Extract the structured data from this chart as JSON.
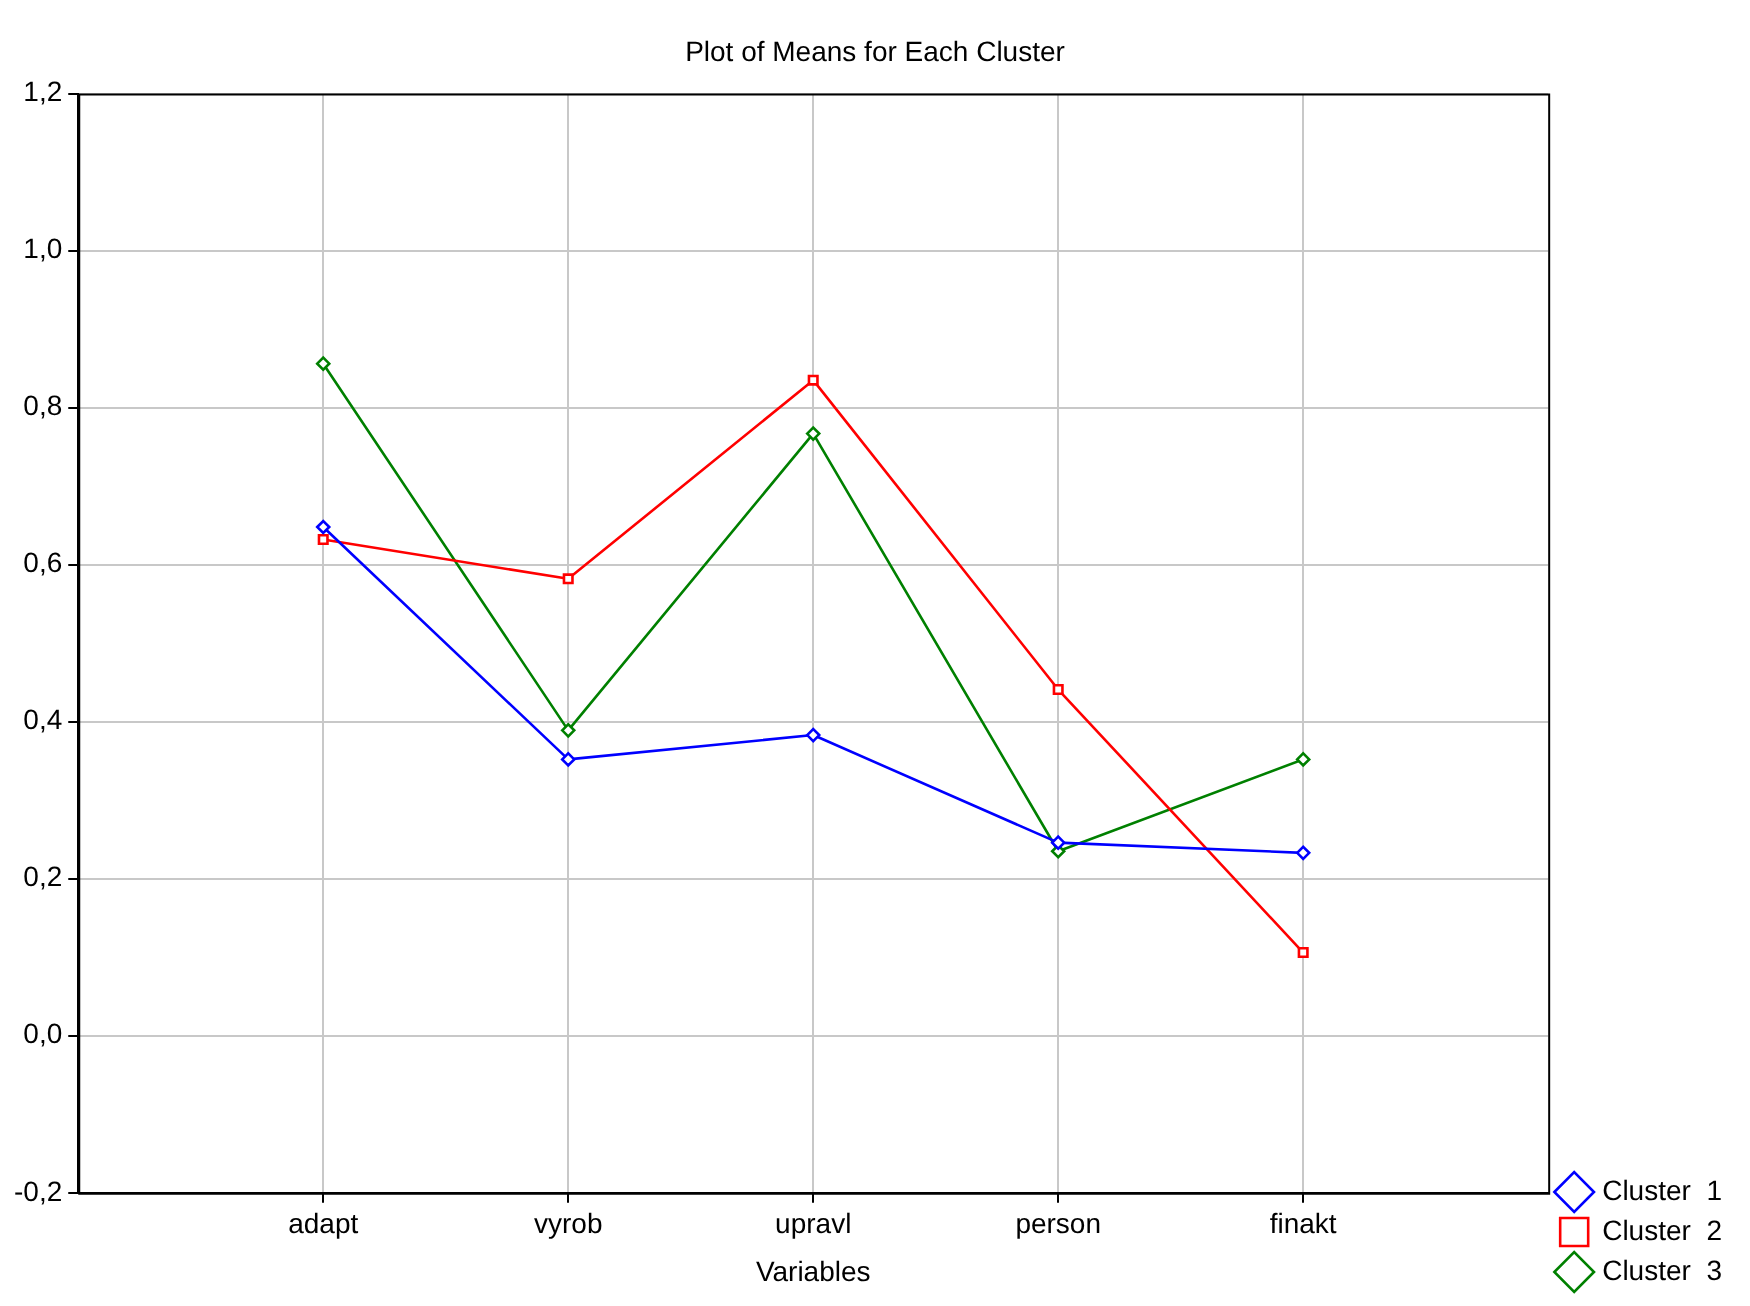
{
  "chart_data": {
    "type": "line",
    "title": "Plot of Means for Each Cluster",
    "xlabel": "Variables",
    "categories": [
      "adapt",
      "vyrob",
      "upravl",
      "person",
      "finakt"
    ],
    "series": [
      {
        "name": "Cluster  1",
        "color": "#0000ff",
        "values": [
          0.648,
          0.352,
          0.383,
          0.246,
          0.233
        ]
      },
      {
        "name": "Cluster  2",
        "color": "#ff0000",
        "marker": "square",
        "values": [
          0.632,
          0.582,
          0.835,
          0.441,
          0.106
        ]
      },
      {
        "name": "Cluster  3",
        "color": "#008000",
        "values": [
          0.856,
          0.389,
          0.767,
          0.235,
          0.352
        ]
      }
    ],
    "ylim": [
      -0.2,
      1.2
    ],
    "yticks": [
      {
        "value": -0.2,
        "label": "-0,2"
      },
      {
        "value": 0,
        "label": "0,0"
      },
      {
        "value": 0.2,
        "label": "0,2"
      },
      {
        "value": 0.4,
        "label": "0,4"
      },
      {
        "value": 0.6,
        "label": "0,6"
      },
      {
        "value": 0.8,
        "label": "0,8"
      },
      {
        "value": 1.0,
        "label": "1,0"
      },
      {
        "value": 1.2,
        "label": "1,2"
      }
    ],
    "grid": true,
    "legend": "bottom right",
    "marker": "diamond",
    "line_style": "solid"
  }
}
